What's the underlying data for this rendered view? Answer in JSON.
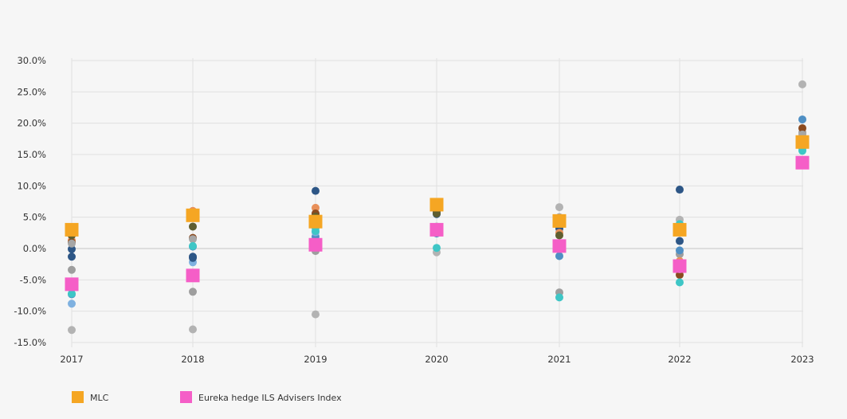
{
  "chart_data": {
    "type": "scatter",
    "title": "",
    "xlabel": "",
    "ylabel": "",
    "categories": [
      "2017",
      "2018",
      "2019",
      "2020",
      "2021",
      "2022",
      "2023"
    ],
    "ylim": [
      -15,
      30
    ],
    "y_ticks": [
      30,
      25,
      20,
      15,
      10,
      5,
      0,
      -5,
      -10,
      -15
    ],
    "y_tick_labels": [
      "30.0%",
      "25.0%",
      "20.0%",
      "15.0%",
      "10.0%",
      "5.0%",
      "0.0%",
      "-5.0%",
      "-10.0%",
      "-15.0%"
    ],
    "grid": true,
    "legend_position": "bottom-left",
    "highlighted_series": [
      {
        "name": "MLC",
        "marker": "square",
        "color": "#f5a623",
        "values": [
          3.0,
          5.3,
          4.3,
          7.0,
          4.4,
          3.0,
          17.0
        ]
      },
      {
        "name": "Eureka hedge ILS Advisers Index",
        "marker": "square",
        "color": "#f55ec7",
        "values": [
          -5.7,
          -4.3,
          0.6,
          3.0,
          0.4,
          -2.8,
          13.7
        ]
      }
    ],
    "background_series": [
      {
        "color": "#b3b3b3",
        "values": [
          -13.0,
          -12.9,
          -10.5,
          -0.6,
          6.6,
          4.6,
          26.2
        ]
      },
      {
        "color": "#9e9e9e",
        "values": [
          -3.4,
          -6.9,
          -0.4,
          3.4,
          -7.0,
          -0.9,
          18.5
        ]
      },
      {
        "color": "#4f8fc4",
        "values": [
          -7.3,
          0.3,
          1.9,
          2.4,
          -1.2,
          -0.3,
          20.6
        ]
      },
      {
        "color": "#7fb1e0",
        "values": [
          -8.8,
          -2.2,
          2.6,
          2.8,
          3.9,
          2.9,
          17.5
        ]
      },
      {
        "color": "#2d5686",
        "values": [
          -1.3,
          -1.5,
          9.2,
          5.5,
          3.2,
          9.4,
          16.9
        ]
      },
      {
        "color": "#2d5686",
        "values": [
          -0.1,
          -1.3,
          5.5,
          5.9,
          4.2,
          1.2,
          16.4
        ]
      },
      {
        "color": "#e8905a",
        "values": [
          1.3,
          6.0,
          6.5,
          6.7,
          2.5,
          -2.0,
          17.2
        ]
      },
      {
        "color": "#8b4a1f",
        "values": [
          1.0,
          1.7,
          5.6,
          6.1,
          4.7,
          -4.2,
          19.2
        ]
      },
      {
        "color": "#5f5e30",
        "values": [
          2.1,
          3.5,
          5.1,
          5.6,
          2.1,
          -2.5,
          17.8
        ]
      },
      {
        "color": "#a6a6a6",
        "values": [
          0.8,
          1.5,
          3.5,
          3.5,
          5.0,
          -3.3,
          18.2
        ]
      },
      {
        "color": "#3ec6c6",
        "values": [
          3.4,
          5.3,
          3.3,
          6.8,
          4.4,
          -5.4,
          15.6
        ]
      },
      {
        "color": "#3ec6c6",
        "values": [
          -7.2,
          0.4,
          2.8,
          0.1,
          -7.8,
          3.9,
          16.0
        ]
      }
    ]
  }
}
